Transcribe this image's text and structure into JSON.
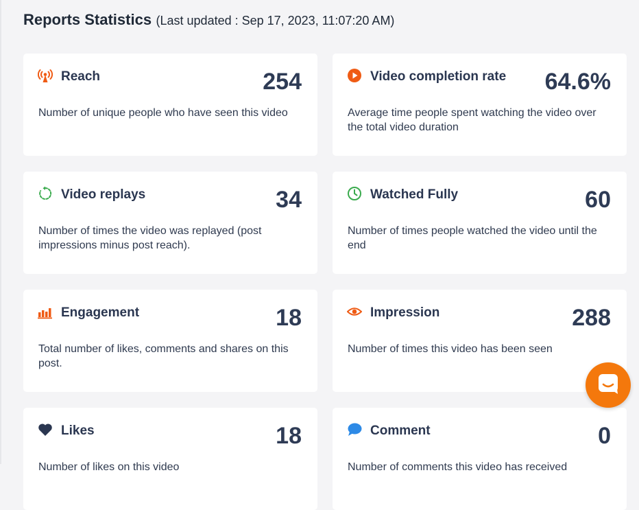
{
  "header": {
    "title": "Reports Statistics",
    "last_updated": "(Last updated : Sep 17, 2023, 11:07:20 AM)"
  },
  "colors": {
    "accent_orange": "#ef5b14",
    "green": "#3aaa4d",
    "navy": "#2a3650",
    "blue": "#2d8ae6",
    "chat_button": "#f4780c"
  },
  "cards": [
    {
      "label": "Reach",
      "value": "254",
      "description": "Number of unique people who have seen this video",
      "icon": "broadcast-tower-icon"
    },
    {
      "label": "Video completion rate",
      "value": "64.6%",
      "description": "Average time people spent watching the video over the total video duration",
      "icon": "play-circle-icon"
    },
    {
      "label": "Video replays",
      "value": "34",
      "description": "Number of times the video was replayed (post impressions minus post reach).",
      "icon": "replay-icon"
    },
    {
      "label": "Watched Fully",
      "value": "60",
      "description": "Number of times people watched the video until the end",
      "icon": "clock-icon"
    },
    {
      "label": "Engagement",
      "value": "18",
      "description": "Total number of likes, comments and shares on this post.",
      "icon": "bar-chart-icon"
    },
    {
      "label": "Impression",
      "value": "288",
      "description": "Number of times this video has been seen",
      "icon": "eye-icon"
    },
    {
      "label": "Likes",
      "value": "18",
      "description": "Number of likes on this video",
      "icon": "heart-icon"
    },
    {
      "label": "Comment",
      "value": "0",
      "description": "Number of comments this video has received",
      "icon": "speech-bubble-icon"
    }
  ],
  "chat": {
    "icon": "chat-icon"
  }
}
